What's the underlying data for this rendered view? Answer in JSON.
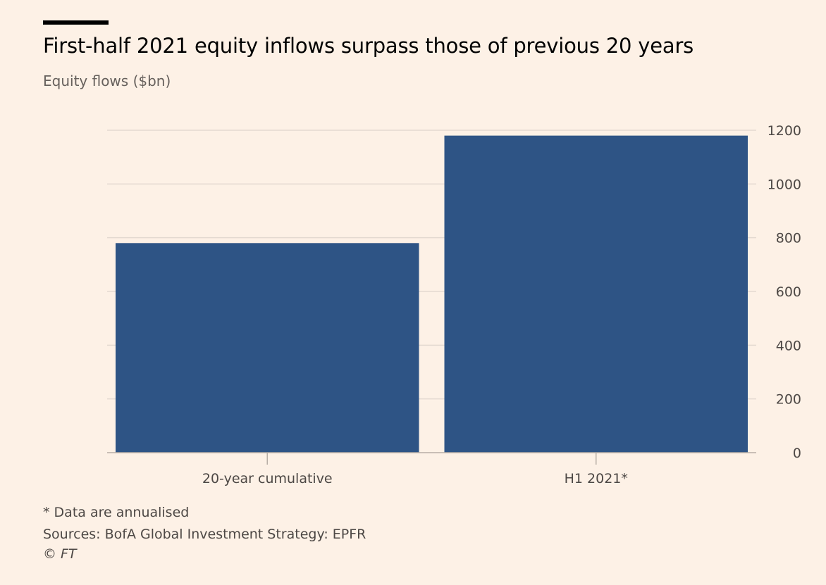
{
  "header": {
    "title": "First-half 2021 equity inflows surpass those of previous 20 years",
    "subtitle": "Equity flows ($bn)"
  },
  "footer": {
    "note": "* Data are annualised",
    "sources": "Sources: BofA Global Investment Strategy: EPFR",
    "copyright": "© FT"
  },
  "colors": {
    "bar": "#2e5485",
    "gridline": "#e3d9d0",
    "axis": "#b8aea6",
    "background": "#fdf1e6"
  },
  "chart_data": {
    "type": "bar",
    "title": "First-half 2021 equity inflows surpass those of previous 20 years",
    "subtitle": "Equity flows ($bn)",
    "categories": [
      "20-year cumulative",
      "H1 2021*"
    ],
    "values": [
      780,
      1180
    ],
    "ylim": [
      0,
      1200
    ],
    "yticks": [
      0,
      200,
      400,
      600,
      800,
      1000,
      1200
    ],
    "y_axis_side": "right",
    "grid": true,
    "legend": "none"
  }
}
